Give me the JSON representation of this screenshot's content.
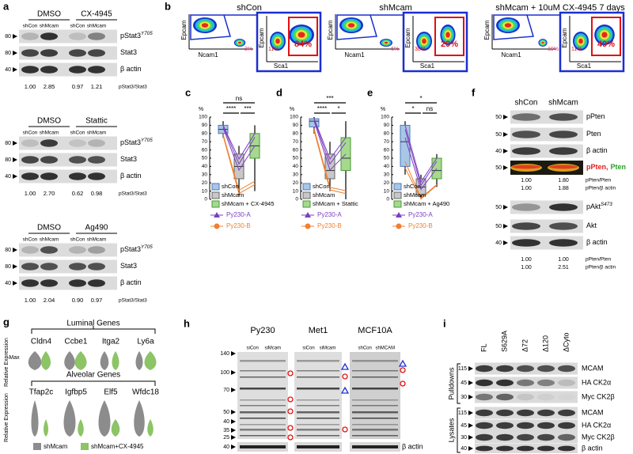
{
  "a": {
    "label": "a",
    "blots": [
      {
        "groups": [
          "DMSO",
          "CX-4945"
        ],
        "lanes": [
          "shCon",
          "shMcam",
          "shCon",
          "shMcam"
        ],
        "bands": [
          {
            "name": "pStat3",
            "sup": "Y705",
            "marker": "80"
          },
          {
            "name": "Stat3",
            "marker": "80"
          },
          {
            "name": "β actin",
            "marker": "40"
          }
        ],
        "quant": [
          "1.00",
          "2.85",
          "0.97",
          "1.21"
        ],
        "quant_label": "pStat3/Stat3"
      },
      {
        "groups": [
          "DMSO",
          "Stattic"
        ],
        "lanes": [
          "shCon",
          "shMcam",
          "shCon",
          "shMcam"
        ],
        "bands": [
          {
            "name": "pStat3",
            "sup": "Y705",
            "marker": "80"
          },
          {
            "name": "Stat3",
            "marker": "80"
          },
          {
            "name": "β actin",
            "marker": "40"
          }
        ],
        "quant": [
          "1.00",
          "2.70",
          "0.62",
          "0.98"
        ],
        "quant_label": "pStat3/Stat3"
      },
      {
        "groups": [
          "DMSO",
          "Ag490"
        ],
        "lanes": [
          "shCon",
          "shMcam",
          "shCon",
          "shMcam"
        ],
        "bands": [
          {
            "name": "pStat3",
            "sup": "Y705",
            "marker": "80"
          },
          {
            "name": "Stat3",
            "marker": "80"
          },
          {
            "name": "β actin",
            "marker": "40"
          }
        ],
        "quant": [
          "1.00",
          "2.04",
          "0.90",
          "0.97"
        ],
        "quant_label": "pStat3/Stat3"
      }
    ]
  },
  "b": {
    "label": "b",
    "plots": [
      {
        "title": "shCon",
        "x1": "Ncam1",
        "y": "Epcam",
        "x2": "Sca1",
        "pct": [
          "3%",
          "11%",
          "84%"
        ]
      },
      {
        "title": "shMcam",
        "x1": "Ncam1",
        "y": "Epcam",
        "x2": "Sca1",
        "pct": [
          "6%",
          "38%",
          "29%"
        ]
      },
      {
        "title": "shMcam + 10uM CX-4945 7 days",
        "x1": "Ncam1",
        "y": "Epcam",
        "x2": "Sca1",
        "pct": [
          "19%",
          "11%",
          "49%"
        ]
      }
    ]
  },
  "c": {
    "label": "c",
    "unit": "%",
    "yticks": [
      0,
      10,
      20,
      30,
      40,
      50,
      60,
      70,
      80,
      90,
      100
    ],
    "sig": [
      "ns",
      "****",
      "***"
    ],
    "legend": [
      "shCon",
      "shMcam",
      "shMcam + CX-4945"
    ],
    "lines": [
      "Py230-A",
      "Py230-B"
    ]
  },
  "d": {
    "label": "d",
    "unit": "%",
    "yticks": [
      0,
      10,
      20,
      30,
      40,
      50,
      60,
      70,
      80,
      90,
      100
    ],
    "sig": [
      "***",
      "****",
      "*"
    ],
    "legend": [
      "shCon",
      "shMcam",
      "shMcam + Stattic"
    ],
    "lines": [
      "Py230-A",
      "Py230-B"
    ]
  },
  "e": {
    "label": "e",
    "unit": "%",
    "yticks": [
      0,
      10,
      20,
      30,
      40,
      50,
      60,
      70,
      80,
      90,
      100
    ],
    "sig": [
      "*",
      "*",
      "ns"
    ],
    "legend": [
      "shCon",
      "shMcam",
      "shMcam + Ag490"
    ],
    "lines": [
      "Py230-A",
      "Py230-B"
    ]
  },
  "f": {
    "label": "f",
    "lanes": [
      "shCon",
      "shMcam"
    ],
    "top": {
      "bands": [
        {
          "name": "pPten",
          "marker": "50"
        },
        {
          "name": "Pten",
          "marker": "50"
        },
        {
          "name": "β actin",
          "marker": "40"
        },
        {
          "merged": [
            "pPten,",
            "Pten"
          ],
          "marker": "50"
        }
      ],
      "quant": [
        [
          "1.00",
          "1.80",
          "pPten/Pten"
        ],
        [
          "1.00",
          "1.88",
          "pPten/β actin"
        ]
      ]
    },
    "bottom": {
      "bands": [
        {
          "name": "pAkt",
          "sup": "S473",
          "marker": "50"
        },
        {
          "name": "Akt",
          "marker": "50"
        },
        {
          "name": "β actin",
          "marker": "40"
        }
      ],
      "quant": [
        [
          "1.00",
          "1.00",
          "pPten/Pten"
        ],
        [
          "1.00",
          "2.51",
          "pPten/β actin"
        ]
      ]
    }
  },
  "g": {
    "label": "g",
    "luminal_title": "Luminal Genes",
    "luminal": [
      "Cldn4",
      "Ccbe1",
      "Itga2",
      "Ly6a"
    ],
    "alveolar_title": "Alveolar Genes",
    "alveolar": [
      "Tfap2c",
      "Igfbp5",
      "Elf5",
      "Wfdc18"
    ],
    "max": "Max",
    "ylabel": "Relative Expression",
    "legend": [
      "shMcam",
      "shMcam+CX-4945"
    ]
  },
  "h": {
    "label": "h",
    "cells": [
      {
        "name": "Py230",
        "lanes": [
          "siCon",
          "siMcam"
        ]
      },
      {
        "name": "Met1",
        "lanes": [
          "siCon",
          "siMcam"
        ]
      },
      {
        "name": "MCF10A",
        "lanes": [
          "shCon",
          "shMCAM"
        ]
      }
    ],
    "markers": [
      "140",
      "100",
      "70",
      "50",
      "40",
      "35",
      "25"
    ],
    "loading": "β actin",
    "loading_marker": "40"
  },
  "i": {
    "label": "i",
    "lanes": [
      "FL",
      "S629A",
      "Δ72",
      "Δ120",
      "ΔCyto"
    ],
    "groups": [
      "Pulldowns",
      "Lysates"
    ],
    "bands": [
      {
        "name": "MCAM",
        "marker": "115"
      },
      {
        "name": "HA CK2α",
        "marker": "45"
      },
      {
        "name": "Myc CK2β",
        "marker": "30"
      },
      {
        "name": "MCAM",
        "marker": "115"
      },
      {
        "name": "HA CK2α",
        "marker": "45"
      },
      {
        "name": "Myc CK2β",
        "marker": "30"
      },
      {
        "name": "β actin",
        "marker": "40"
      }
    ]
  }
}
